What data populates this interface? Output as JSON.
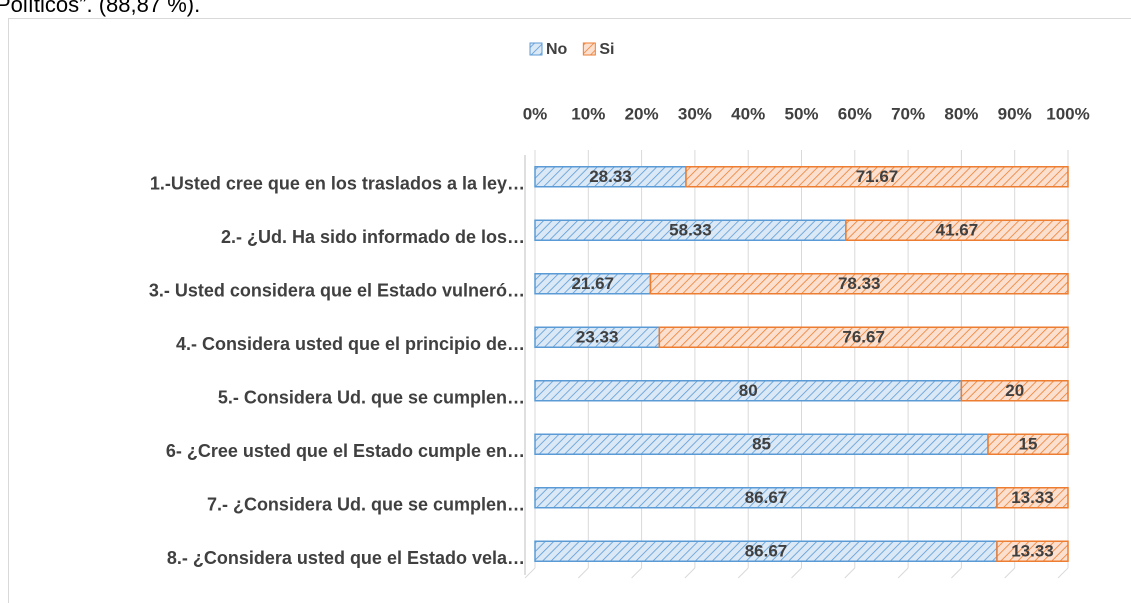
{
  "caption": "Políticos”. (88,87 %).",
  "chart_data": {
    "type": "stacked-bar-horizontal",
    "categories": [
      "1.-Usted cree que en los traslados a la ley…",
      "2.- ¿Ud. Ha sido informado de los…",
      "3.- Usted considera que el Estado vulneró…",
      "4.- Considera usted que el principio de…",
      "5.- Considera Ud. que se cumplen…",
      "6- ¿Cree usted que el Estado cumple en…",
      "7.- ¿Considera Ud. que se cumplen…",
      "8.- ¿Considera usted que el Estado vela…"
    ],
    "series": [
      {
        "name": "No",
        "color": "#5b9bd5",
        "values": [
          28.33,
          58.33,
          21.67,
          23.33,
          80,
          85,
          86.67,
          86.67
        ]
      },
      {
        "name": "Si",
        "color": "#ed7d31",
        "values": [
          71.67,
          41.67,
          78.33,
          76.67,
          20,
          15,
          13.33,
          13.33
        ]
      }
    ],
    "xlim": [
      0,
      100
    ],
    "xticks": [
      {
        "value": 0,
        "label": "0%"
      },
      {
        "value": 10,
        "label": "10%"
      },
      {
        "value": 20,
        "label": "20%"
      },
      {
        "value": 30,
        "label": "30%"
      },
      {
        "value": 40,
        "label": "40%"
      },
      {
        "value": 50,
        "label": "50%"
      },
      {
        "value": 60,
        "label": "60%"
      },
      {
        "value": 70,
        "label": "70%"
      },
      {
        "value": 80,
        "label": "80%"
      },
      {
        "value": 90,
        "label": "90%"
      },
      {
        "value": 100,
        "label": "100%"
      }
    ],
    "grid": true,
    "legend": "top"
  }
}
